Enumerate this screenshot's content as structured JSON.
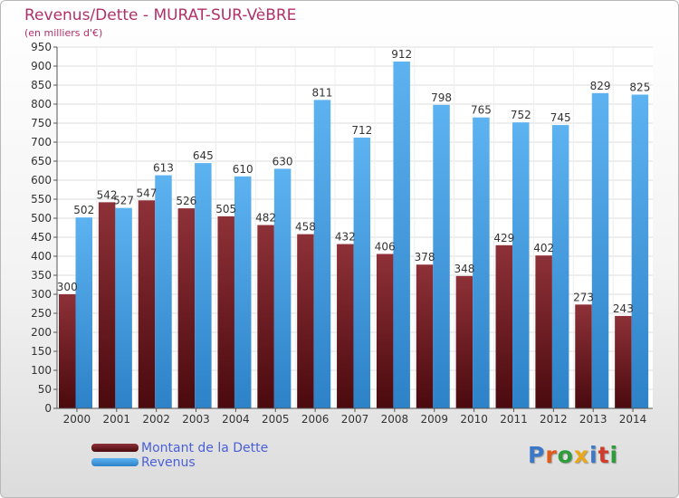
{
  "header": {
    "title": "Revenus/Dette - MURAT-SUR-VèBRE",
    "subtitle": "(en milliers d'€)"
  },
  "colors": {
    "debt": "#6d1a1f",
    "revenue": "#3f9ee6",
    "title": "#b0306a",
    "legend_text": "#4a60d8"
  },
  "legend": {
    "items": [
      {
        "label": "Montant de la Dette",
        "color": "#6d1a1f"
      },
      {
        "label": "Revenus",
        "color": "#3f9ee6"
      }
    ]
  },
  "logo": {
    "text": "Proxiti",
    "letter_colors": [
      "#3c78c8",
      "#e05a18",
      "#2e9c3a",
      "#e8a81a",
      "#3c78c8",
      "#d23a2a",
      "#2e9c3a"
    ]
  },
  "chart_data": {
    "type": "bar",
    "title": "Revenus/Dette - MURAT-SUR-VèBRE",
    "ylabel": "(en milliers d'€)",
    "categories": [
      "2000",
      "2001",
      "2002",
      "2003",
      "2004",
      "2005",
      "2006",
      "2007",
      "2008",
      "2009",
      "2010",
      "2011",
      "2012",
      "2013",
      "2014"
    ],
    "series": [
      {
        "name": "Montant de la Dette",
        "values": [
          300,
          542,
          547,
          526,
          505,
          482,
          458,
          432,
          406,
          378,
          348,
          429,
          402,
          273,
          243
        ]
      },
      {
        "name": "Revenus",
        "values": [
          502,
          527,
          613,
          645,
          610,
          630,
          811,
          712,
          912,
          798,
          765,
          752,
          745,
          829,
          825
        ]
      }
    ],
    "ylim": [
      0,
      950
    ],
    "yticks": [
      0,
      50,
      100,
      150,
      200,
      250,
      300,
      350,
      400,
      450,
      500,
      550,
      600,
      650,
      700,
      750,
      800,
      850,
      900,
      950
    ],
    "grid": true,
    "legend_position": "bottom-left"
  }
}
